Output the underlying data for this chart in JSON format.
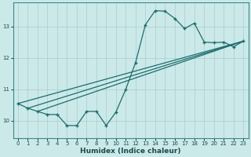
{
  "xlabel": "Humidex (Indice chaleur)",
  "background_color": "#cce9e9",
  "grid_color": "#aacccc",
  "line_color": "#1a6e6e",
  "xlim": [
    -0.5,
    23.5
  ],
  "ylim": [
    9.45,
    13.75
  ],
  "yticks": [
    10,
    11,
    12,
    13
  ],
  "xticks": [
    0,
    1,
    2,
    3,
    4,
    5,
    6,
    7,
    8,
    9,
    10,
    11,
    12,
    13,
    14,
    15,
    16,
    17,
    18,
    19,
    20,
    21,
    22,
    23
  ],
  "main_x": [
    0,
    1,
    2,
    3,
    4,
    5,
    6,
    7,
    8,
    9,
    10,
    11,
    12,
    13,
    14,
    15,
    16,
    17,
    18,
    19,
    20,
    21,
    22,
    23
  ],
  "main_y": [
    10.55,
    10.4,
    10.3,
    10.2,
    10.2,
    9.85,
    9.85,
    10.3,
    10.3,
    9.85,
    10.28,
    11.0,
    11.85,
    13.05,
    13.5,
    13.48,
    13.25,
    12.93,
    13.1,
    12.5,
    12.48,
    12.5,
    12.35,
    12.53
  ],
  "line1_x": [
    0,
    23
  ],
  "line1_y": [
    10.55,
    12.53
  ],
  "line2_x": [
    1,
    23
  ],
  "line2_y": [
    10.4,
    12.53
  ],
  "line3_x": [
    2,
    23
  ],
  "line3_y": [
    10.3,
    12.53
  ]
}
